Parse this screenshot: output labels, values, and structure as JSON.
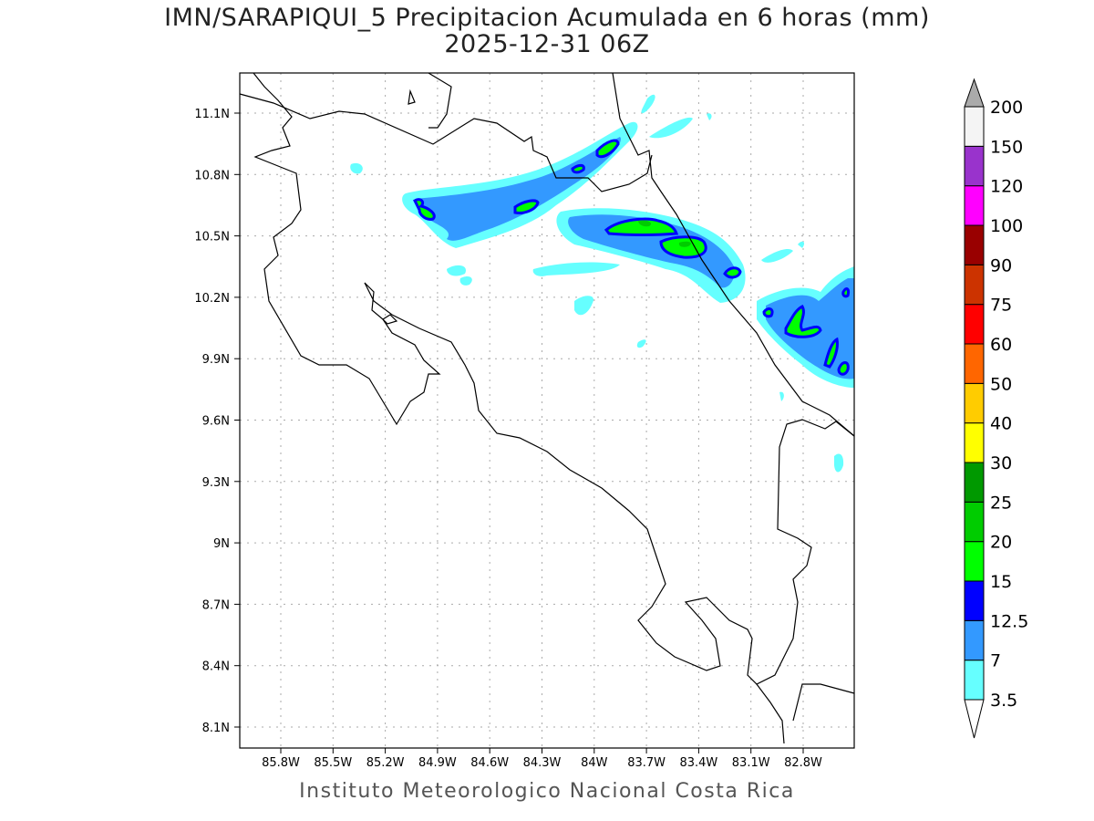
{
  "title": "IMN/SARAPIQUI_5 Precipitacion Acumulada en 6 horas (mm)",
  "subtitle": "2025-12-31 06Z",
  "footer": "Instituto Meteorologico Nacional Costa Rica",
  "x_ticks": [
    "85.8W",
    "85.5W",
    "85.2W",
    "84.9W",
    "84.6W",
    "84.3W",
    "84W",
    "83.7W",
    "83.4W",
    "83.1W",
    "82.8W"
  ],
  "y_ticks": [
    "11.1N",
    "10.8N",
    "10.5N",
    "10.2N",
    "9.9N",
    "9.6N",
    "9.3N",
    "9N",
    "8.7N",
    "8.4N",
    "8.1N"
  ],
  "colorbar": {
    "labels": [
      "3.5",
      "7",
      "12.5",
      "15",
      "20",
      "25",
      "30",
      "40",
      "50",
      "60",
      "75",
      "90",
      "100",
      "120",
      "150",
      "200"
    ],
    "colors": [
      "#66ffff",
      "#3399ff",
      "#0000ff",
      "#00ff00",
      "#00cc00",
      "#009900",
      "#ffff00",
      "#ffcc00",
      "#ff6600",
      "#ff0000",
      "#cc3300",
      "#990000",
      "#ff00ff",
      "#9933cc",
      "#f4f4f4"
    ],
    "over_color": "#aaaaaa"
  }
}
